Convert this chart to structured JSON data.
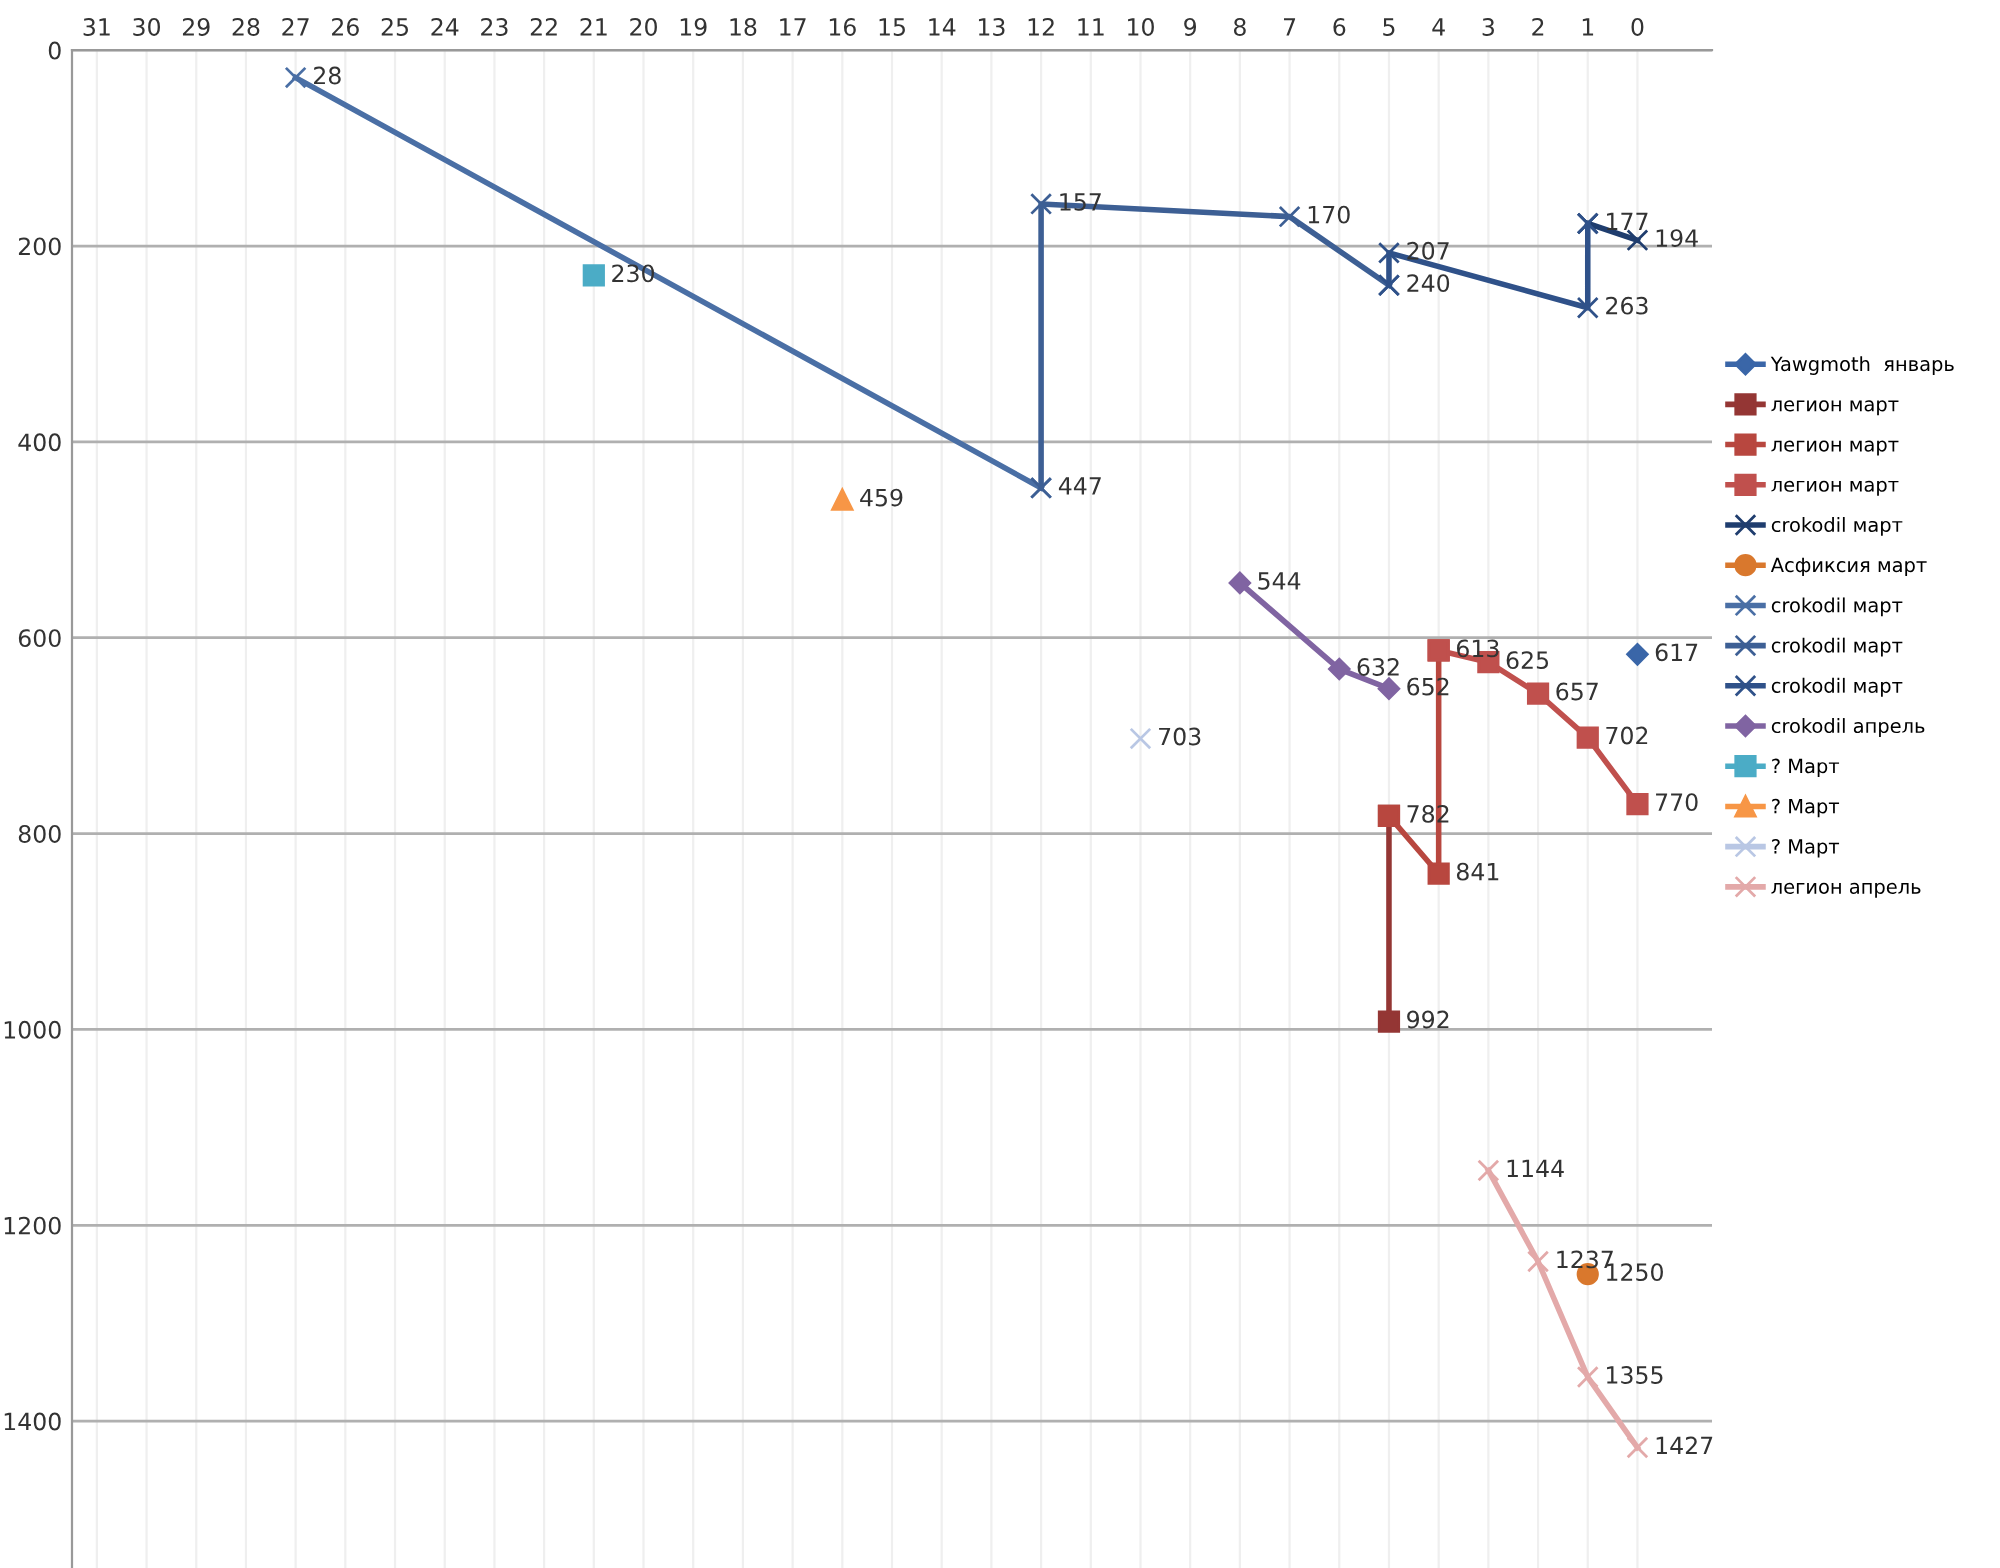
{
  "chart_data": {
    "type": "line",
    "xlim": [
      31.5,
      -1.5
    ],
    "xticks": [
      31,
      30,
      29,
      28,
      27,
      26,
      25,
      24,
      23,
      22,
      21,
      20,
      19,
      18,
      17,
      16,
      15,
      14,
      13,
      12,
      11,
      10,
      9,
      8,
      7,
      6,
      5,
      4,
      3,
      2,
      1,
      0
    ],
    "ylim": [
      1550,
      0
    ],
    "yticks": [
      0,
      200,
      400,
      600,
      800,
      1000,
      1200,
      1400
    ],
    "grid": true,
    "legend": "right",
    "series": [
      {
        "name": "Yawgmoth  январь",
        "color": "#3a66a8",
        "marker": "diamond",
        "x": [
          0
        ],
        "values": [
          617
        ],
        "value_labels": [
          "617"
        ]
      },
      {
        "name": "легион март",
        "color": "#943634",
        "marker": "square",
        "x": [
          5,
          5
        ],
        "values": [
          992,
          782
        ],
        "value_labels": [
          "992",
          null
        ]
      },
      {
        "name": "легион март",
        "color": "#b8473f",
        "marker": "square",
        "x": [
          5,
          4,
          4
        ],
        "values": [
          782,
          841,
          613
        ],
        "value_labels": [
          "782",
          "841",
          null
        ]
      },
      {
        "name": "легион март",
        "color": "#c0504d",
        "marker": "square",
        "x": [
          4,
          3,
          2,
          1,
          0
        ],
        "values": [
          613,
          625,
          657,
          702,
          770
        ],
        "value_labels": [
          "613",
          "625",
          "657",
          "702",
          "770"
        ]
      },
      {
        "name": "crokodil март",
        "color": "#1f3d6e",
        "marker": "cross",
        "x": [
          1,
          0
        ],
        "values": [
          177,
          194
        ],
        "value_labels": [
          "177",
          "194"
        ]
      },
      {
        "name": "Асфиксия март",
        "color": "#d9782d",
        "marker": "circle",
        "x": [
          1
        ],
        "values": [
          1250
        ],
        "value_labels": [
          "1250"
        ]
      },
      {
        "name": "crokodil март",
        "color": "#4a6fa5",
        "marker": "cross",
        "x": [
          27,
          12
        ],
        "values": [
          28,
          447
        ],
        "value_labels": [
          "28",
          "447"
        ]
      },
      {
        "name": "crokodil март",
        "color": "#3d5f94",
        "marker": "cross",
        "x": [
          12,
          12,
          7,
          5
        ],
        "values": [
          447,
          157,
          170,
          240
        ],
        "value_labels": [
          null,
          "157",
          "170",
          "240"
        ]
      },
      {
        "name": "crokodil март",
        "color": "#2f5189",
        "marker": "cross",
        "x": [
          5,
          5,
          1,
          1
        ],
        "values": [
          240,
          207,
          263,
          177
        ],
        "value_labels": [
          null,
          "207",
          "263",
          null
        ]
      },
      {
        "name": "crokodil апрель",
        "color": "#8064a2",
        "marker": "diamond",
        "x": [
          8,
          6,
          5
        ],
        "values": [
          544,
          632,
          652
        ],
        "value_labels": [
          "544",
          "632",
          "652"
        ]
      },
      {
        "name": "? Март",
        "color": "#4bacc6",
        "marker": "square",
        "x": [
          21
        ],
        "values": [
          230
        ],
        "value_labels": [
          "230"
        ]
      },
      {
        "name": "? Март",
        "color": "#f79646",
        "marker": "triangle",
        "x": [
          16
        ],
        "values": [
          459
        ],
        "value_labels": [
          "459"
        ]
      },
      {
        "name": "? Март",
        "color": "#b9c7e4",
        "marker": "cross",
        "x": [
          10
        ],
        "values": [
          703
        ],
        "value_labels": [
          "703"
        ]
      },
      {
        "name": "легион апрель",
        "color": "#e3a9a9",
        "marker": "cross",
        "x": [
          3,
          2,
          1,
          0
        ],
        "values": [
          1144,
          1237,
          1355,
          1427
        ],
        "value_labels": [
          "1144",
          "1237",
          "1355",
          "1427"
        ]
      }
    ]
  }
}
